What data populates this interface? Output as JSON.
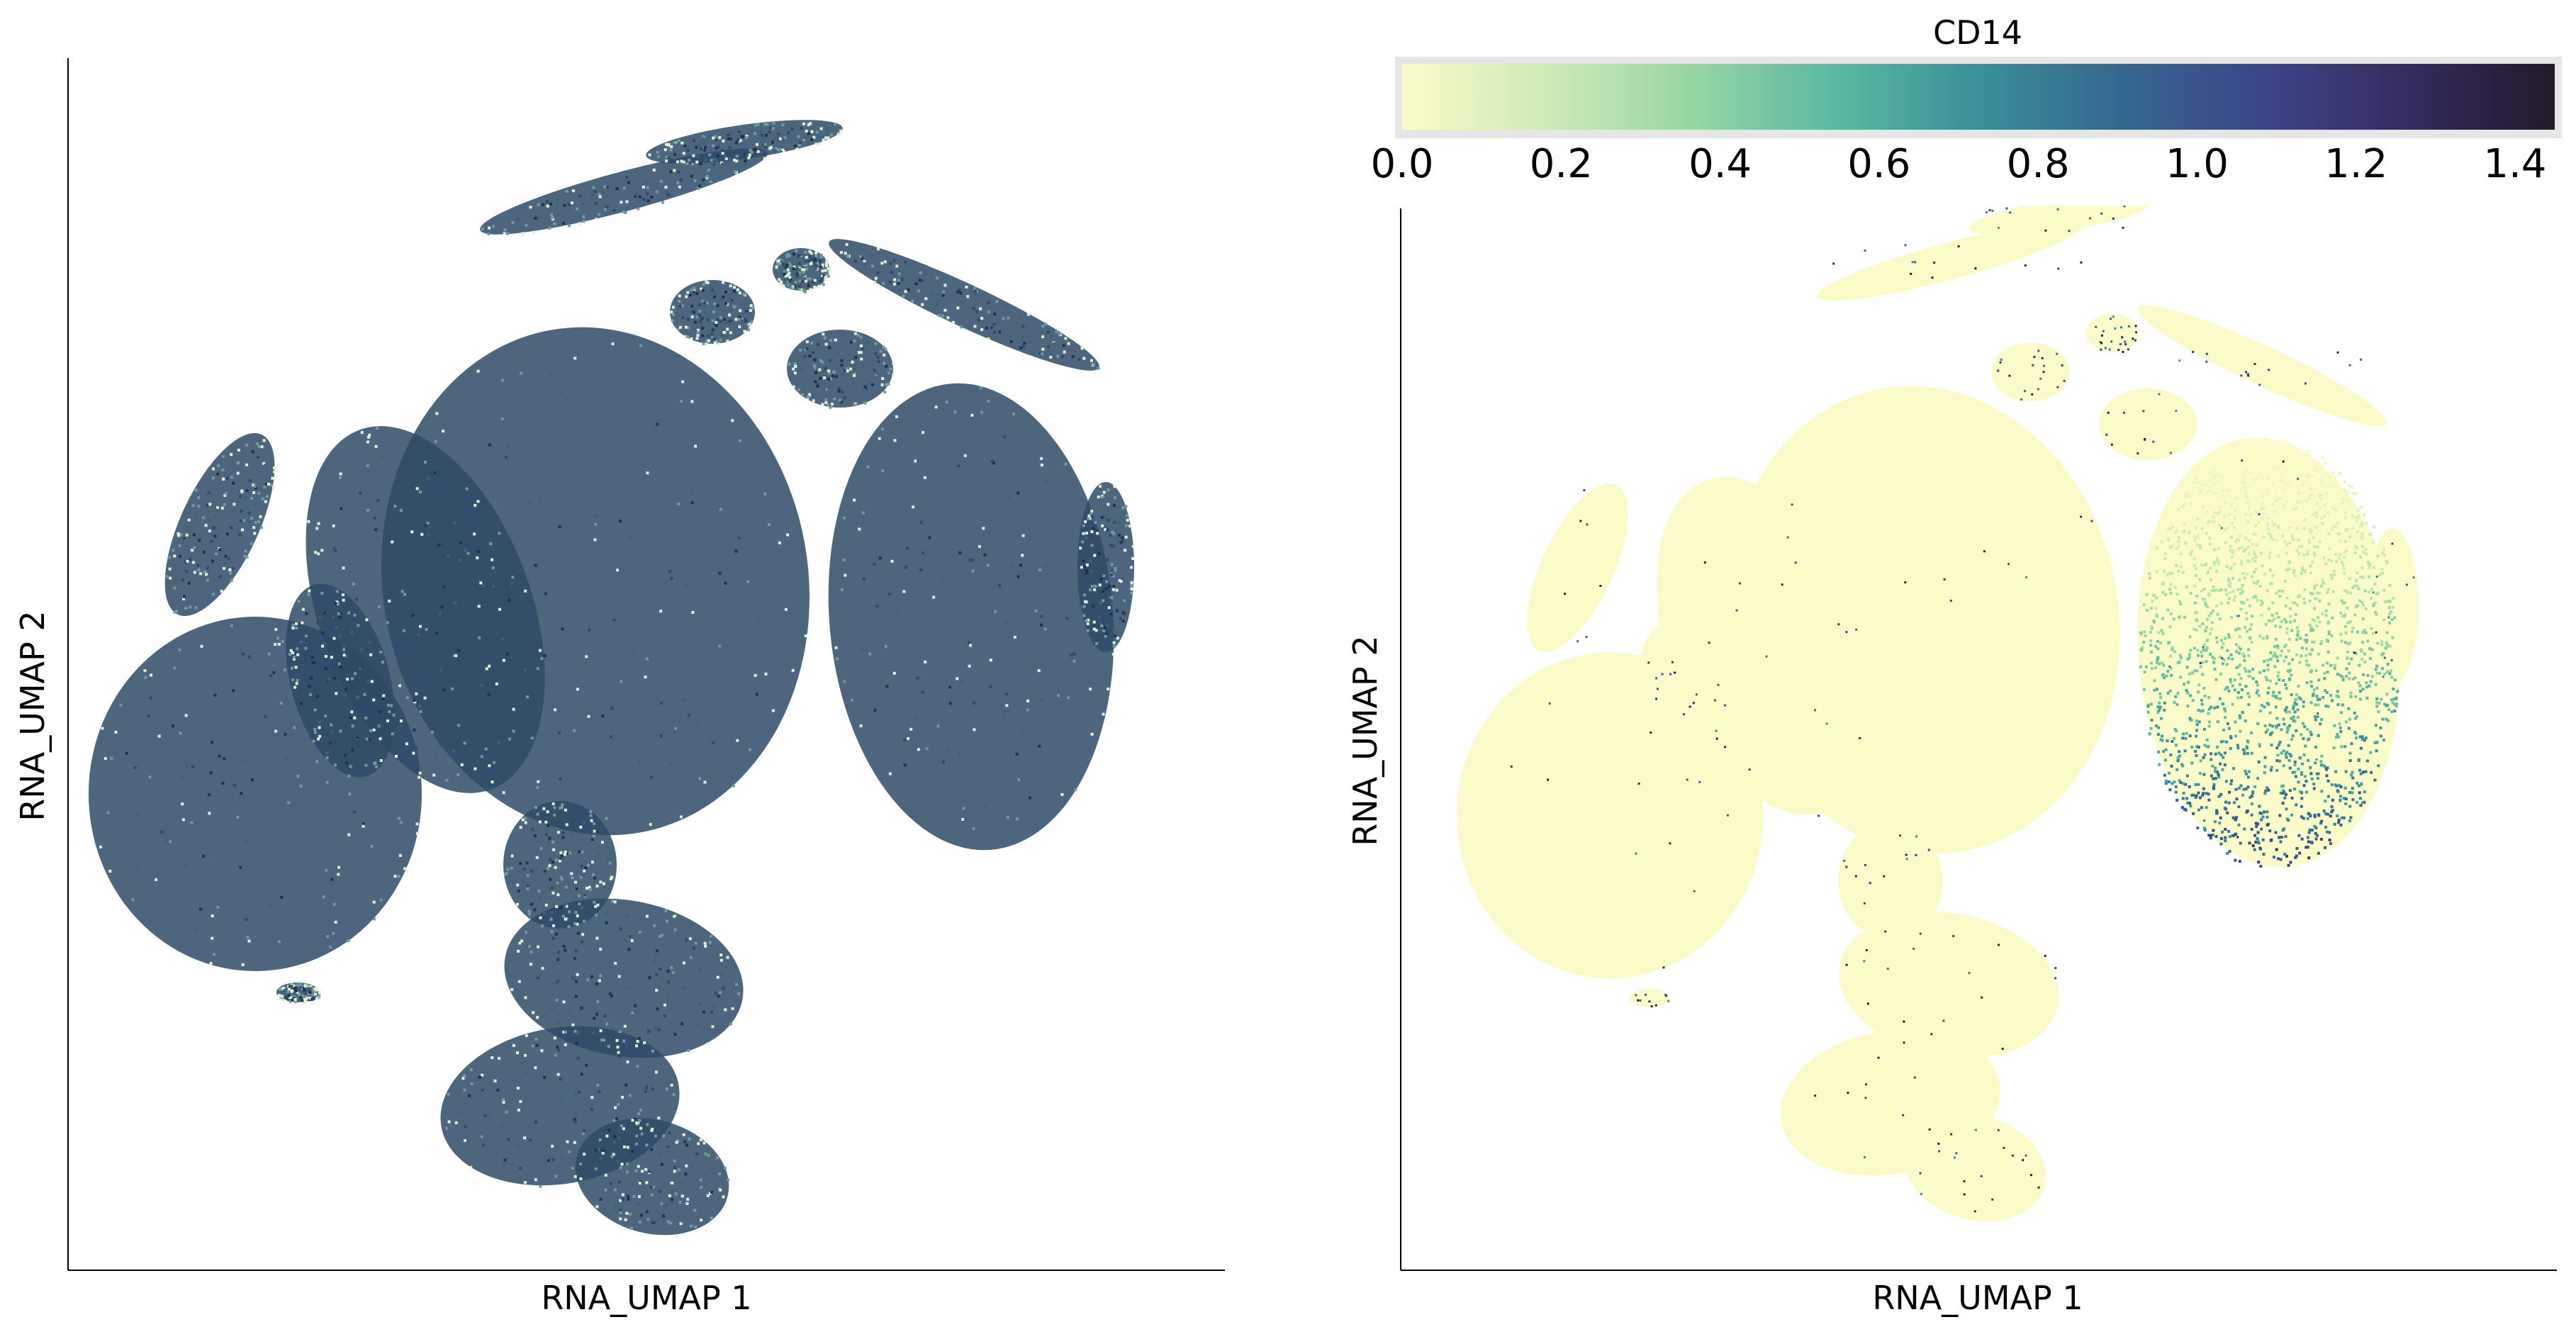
{
  "chart_data": [
    {
      "type": "scatter",
      "title": "",
      "xlabel": "RNA_UMAP 1",
      "ylabel": "RNA_UMAP 2",
      "x_ticks": [],
      "y_ticks": [],
      "grid": false,
      "legend": "none",
      "color_mode": "density",
      "point_colors": [
        "#1f3150",
        "#2e4a66",
        "#3b6478",
        "#6f9ca0",
        "#e3f1d8"
      ],
      "clusters": [
        {
          "name": "",
          "shape": "blob",
          "density": "high"
        }
      ]
    },
    {
      "type": "scatter",
      "title": "",
      "xlabel": "RNA_UMAP 1",
      "ylabel": "RNA_UMAP 2",
      "x_ticks": [],
      "y_ticks": [],
      "grid": false,
      "legend": "none",
      "color_mode": "expression",
      "colorbar": {
        "label": "CD14",
        "placement": "top",
        "min": 0.0,
        "max": 1.45,
        "ticks": [
          0.0,
          0.2,
          0.4,
          0.6,
          0.8,
          1.0,
          1.2,
          1.4
        ],
        "tick_labels": [
          "0.0",
          "0.2",
          "0.4",
          "0.6",
          "0.8",
          "1.0",
          "1.2",
          "1.4"
        ],
        "colormap": [
          "#fbfbc9",
          "#cdeab5",
          "#97d6a1",
          "#5cb8a1",
          "#3b8f9a",
          "#35678f",
          "#3c4688",
          "#352b5f",
          "#231a2c"
        ]
      },
      "base_value": 0.0,
      "high_expression_region_value": 1.3
    }
  ]
}
